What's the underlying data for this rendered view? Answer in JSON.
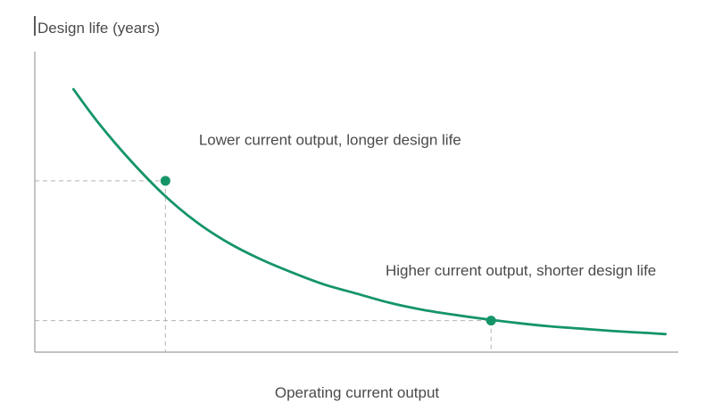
{
  "chart_data": {
    "type": "line",
    "ylabel": "Design life (years)",
    "xlabel": "Operating current output",
    "ylim": [
      0,
      10
    ],
    "xlim": [
      0,
      10
    ],
    "grid": false,
    "curve_color": "#159567",
    "marker_color": "#159567",
    "series": [
      {
        "x": [
          0.6,
          1.0,
          1.5,
          2.0,
          2.5,
          3.0,
          3.5,
          4.0,
          4.5,
          5.0,
          5.5,
          6.0,
          6.5,
          7.0,
          7.5,
          8.0,
          8.5,
          9.0,
          9.5,
          9.8
        ],
        "y": [
          8.75,
          7.6,
          6.35,
          5.25,
          4.35,
          3.65,
          3.1,
          2.65,
          2.25,
          1.95,
          1.65,
          1.42,
          1.25,
          1.1,
          0.97,
          0.86,
          0.78,
          0.7,
          0.64,
          0.6
        ]
      }
    ],
    "points": [
      {
        "x": 2.03,
        "y": 5.7,
        "guide_y": 5.7,
        "guide_x": 2.03
      },
      {
        "x": 7.09,
        "y": 1.05,
        "guide_y": 1.05,
        "guide_x": 7.09
      }
    ],
    "annotations": [
      {
        "text": "Lower current output, longer design life",
        "x": 2.55,
        "y": 6.9
      },
      {
        "text": "Higher current output, shorter design life",
        "x": 5.45,
        "y": 2.55
      }
    ]
  }
}
